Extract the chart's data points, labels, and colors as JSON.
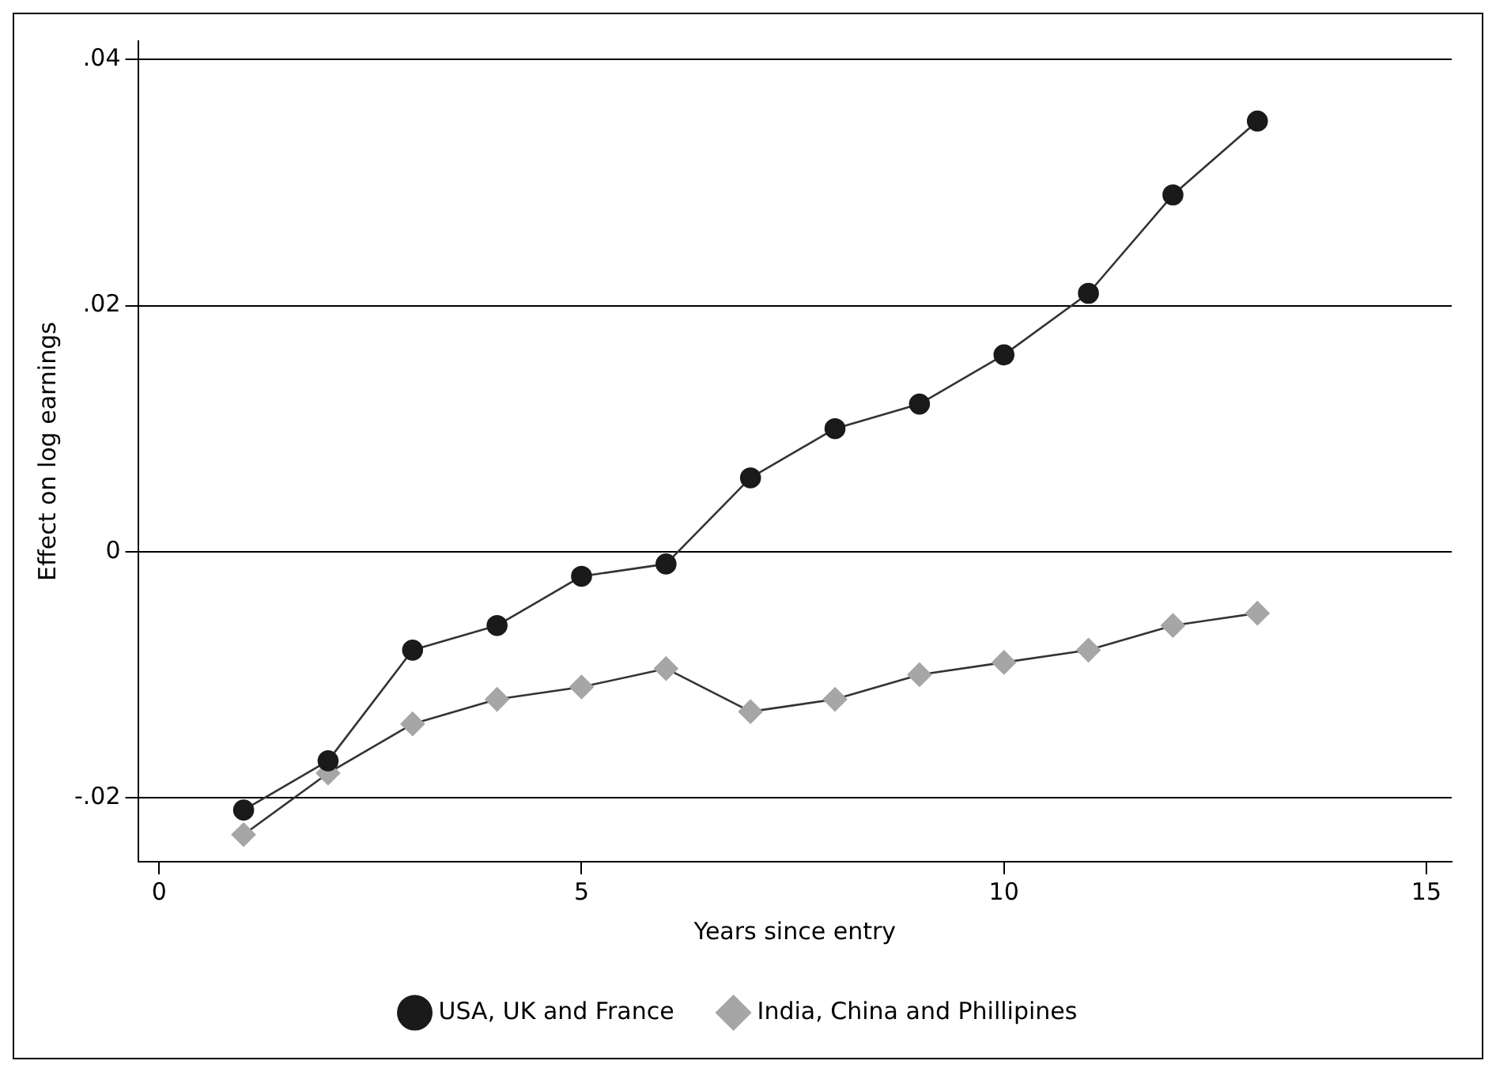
{
  "chart_data": {
    "type": "line",
    "xlabel": "Years since entry",
    "ylabel": "Effect on log earnings",
    "x": [
      1,
      2,
      3,
      4,
      5,
      6,
      7,
      8,
      9,
      10,
      11,
      12,
      13
    ],
    "series": [
      {
        "name": "USA, UK and France",
        "color": "#1a1a1a",
        "marker": "circle",
        "values": [
          -0.021,
          -0.017,
          -0.008,
          -0.006,
          -0.002,
          -0.001,
          0.006,
          0.01,
          0.012,
          0.016,
          0.021,
          0.029,
          0.035
        ]
      },
      {
        "name": "India, China and Phillipines",
        "color": "#a6a6a6",
        "marker": "diamond",
        "values": [
          -0.023,
          -0.018,
          -0.014,
          -0.012,
          -0.011,
          -0.0095,
          -0.013,
          -0.012,
          -0.01,
          -0.009,
          -0.008,
          -0.006,
          -0.005
        ]
      }
    ],
    "xlim": [
      -0.25,
      15.3
    ],
    "xticks": [
      0,
      5,
      10,
      15
    ],
    "ylim": [
      -0.0252,
      0.0415
    ],
    "yticks": [
      {
        "value": -0.02,
        "label": "-.02"
      },
      {
        "value": 0,
        "label": "0"
      },
      {
        "value": 0.02,
        "label": ".02"
      },
      {
        "value": 0.04,
        "label": ".04"
      }
    ],
    "grid": "y",
    "legend": "bottom"
  }
}
